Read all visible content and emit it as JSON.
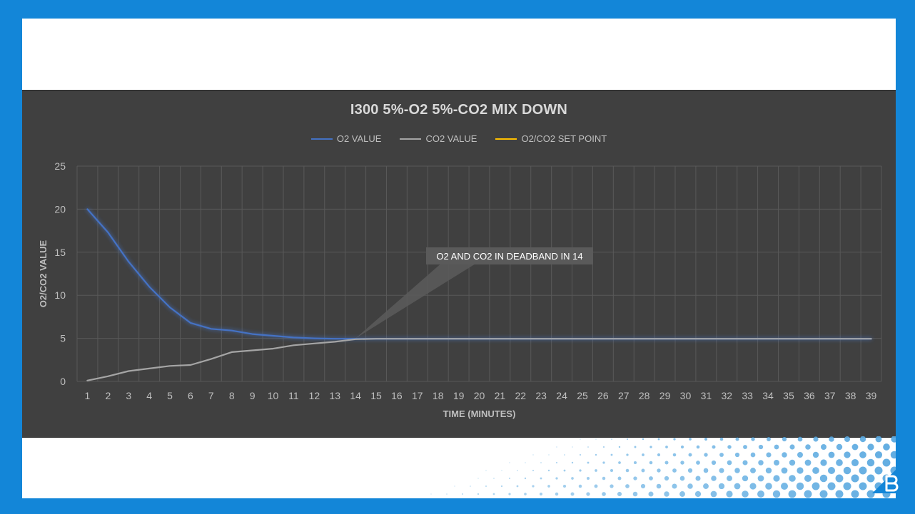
{
  "chart_data": {
    "type": "line",
    "title": "I300 5%-O2  5%-CO2 MIX DOWN",
    "xlabel": "TIME (MINUTES)",
    "ylabel": "O2/CO2 VALUE",
    "ylim": [
      0,
      25
    ],
    "yticks": [
      0,
      5,
      10,
      15,
      20,
      25
    ],
    "grid": true,
    "legend_position": "top",
    "x": [
      1,
      2,
      3,
      4,
      5,
      6,
      7,
      8,
      9,
      10,
      11,
      12,
      13,
      14,
      15,
      16,
      17,
      18,
      19,
      20,
      21,
      22,
      23,
      24,
      25,
      26,
      27,
      28,
      29,
      30,
      31,
      32,
      33,
      34,
      35,
      36,
      37,
      38,
      39
    ],
    "series": [
      {
        "name": "O2 VALUE",
        "color": "#4472c4",
        "values": [
          20.0,
          17.3,
          13.9,
          11.0,
          8.6,
          6.8,
          6.1,
          5.9,
          5.5,
          5.3,
          5.1,
          5.0,
          4.95,
          4.95,
          4.95,
          4.95,
          4.95,
          4.95,
          4.95,
          4.95,
          4.95,
          4.95,
          4.95,
          4.95,
          4.95,
          4.95,
          4.95,
          4.95,
          4.95,
          4.95,
          4.95,
          4.95,
          4.95,
          4.95,
          4.95,
          4.95,
          4.95,
          4.95,
          4.95
        ]
      },
      {
        "name": "CO2 VALUE",
        "color": "#a5a5a5",
        "values": [
          0.1,
          0.6,
          1.2,
          1.5,
          1.8,
          1.9,
          2.6,
          3.4,
          3.6,
          3.8,
          4.2,
          4.4,
          4.6,
          4.9,
          4.95,
          4.95,
          4.95,
          4.95,
          4.95,
          4.95,
          4.95,
          4.95,
          4.95,
          4.95,
          4.95,
          4.95,
          4.95,
          4.95,
          4.95,
          4.95,
          4.95,
          4.95,
          4.95,
          4.95,
          4.95,
          4.95,
          4.95,
          4.95,
          4.95
        ]
      },
      {
        "name": "O2/CO2 SET POINT",
        "color": "#ffc000",
        "values": [
          5,
          5,
          5,
          5,
          5,
          5,
          5,
          5,
          5,
          5,
          5,
          5,
          5,
          5,
          5,
          5,
          5,
          5,
          5,
          5,
          5,
          5,
          5,
          5,
          5,
          5,
          5,
          5,
          5,
          5,
          5,
          5,
          5,
          5,
          5,
          5,
          5,
          5,
          5
        ]
      }
    ],
    "annotation": {
      "text": "O2 AND CO2 IN DEADBAND IN 14",
      "x": 14,
      "y": 5
    }
  },
  "colors": {
    "frame": "#1386d8",
    "chart_background": "#404040",
    "grid": "#595959",
    "text": "#d9d9d9"
  },
  "logo": {
    "icon": "b-logo-icon"
  }
}
